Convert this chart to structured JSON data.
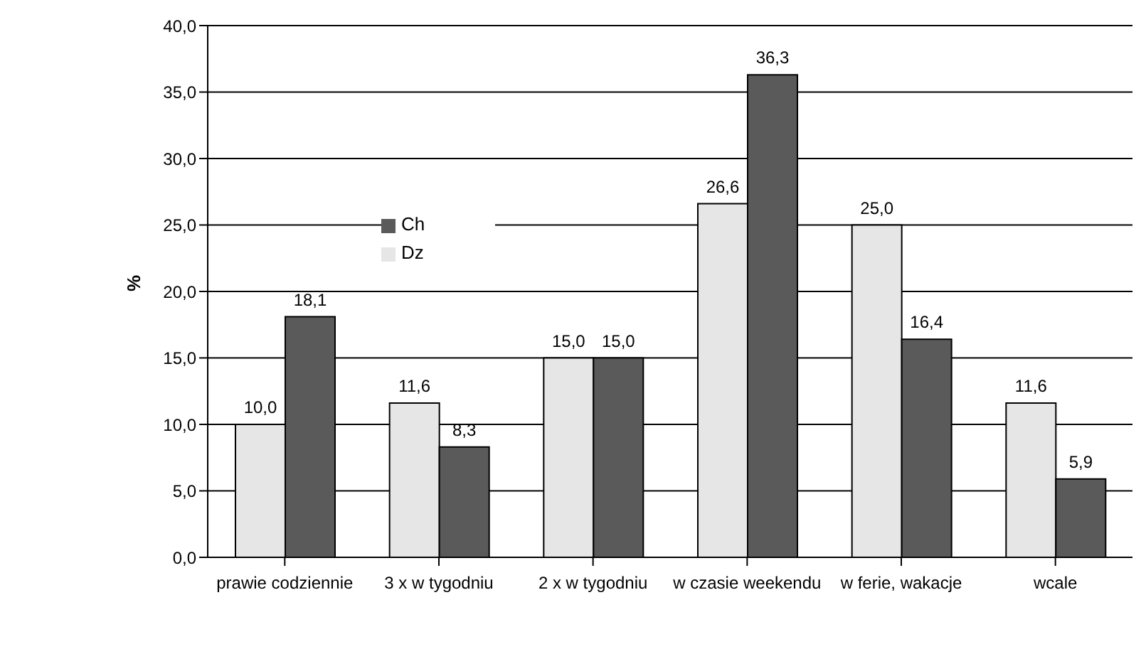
{
  "chart_data": {
    "type": "bar",
    "ylabel": "%",
    "categories": [
      "prawie codziennie",
      "3 x w tygodniu",
      "2 x w tygodniu",
      "w czasie weekendu",
      "w ferie, wakacje",
      "wcale"
    ],
    "series": [
      {
        "name": "Dz",
        "color": "#e6e6e6",
        "values": [
          10.0,
          11.6,
          15.0,
          26.6,
          25.0,
          11.6
        ],
        "value_labels": [
          "10,0",
          "11,6",
          "15,0",
          "26,6",
          "25,0",
          "11,6"
        ]
      },
      {
        "name": "Ch",
        "color": "#5a5a5a",
        "values": [
          18.1,
          8.3,
          15.0,
          36.3,
          16.4,
          5.9
        ],
        "value_labels": [
          "18,1",
          "8,3",
          "15,0",
          "36,3",
          "16,4",
          "5,9"
        ]
      }
    ],
    "ylim": [
      0,
      40
    ],
    "yticks": [
      {
        "value": 0,
        "label": "0,0"
      },
      {
        "value": 5,
        "label": "5,0"
      },
      {
        "value": 10,
        "label": "10,0"
      },
      {
        "value": 15,
        "label": "15,0"
      },
      {
        "value": 20,
        "label": "20,0"
      },
      {
        "value": 25,
        "label": "25,0"
      },
      {
        "value": 30,
        "label": "30,0"
      },
      {
        "value": 35,
        "label": "35,0"
      },
      {
        "value": 40,
        "label": "40,0"
      }
    ],
    "grid": "y",
    "legend": "top left"
  }
}
